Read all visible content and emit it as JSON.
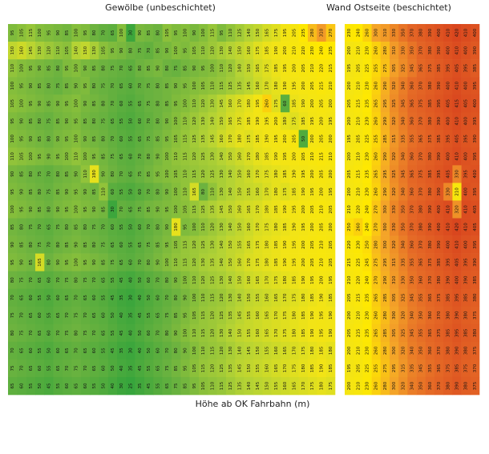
{
  "chart_data": {
    "type": "heatmap",
    "xlabel": "Höhe ab OK Fahrbahn (m)",
    "colorscale": [
      [
        0,
        "#1f9e3a"
      ],
      [
        80,
        "#6db33f"
      ],
      [
        140,
        "#b5d334"
      ],
      [
        190,
        "#f2e416"
      ],
      [
        240,
        "#ffe800"
      ],
      [
        300,
        "#f4a428"
      ],
      [
        360,
        "#e56a26"
      ],
      [
        420,
        "#d9461e"
      ]
    ],
    "panels": [
      {
        "title": "Gewölbe (unbeschichtet)",
        "values": [
          [
            95,
            105,
            115,
            100,
            95,
            90,
            85,
            100,
            95,
            80,
            70,
            65,
            100,
            30,
            90,
            85,
            80,
            105,
            95,
            100,
            90,
            100,
            115,
            95,
            110,
            125,
            140,
            150,
            165,
            175,
            195,
            205,
            235,
            280,
            310,
            270
          ],
          [
            150,
            160,
            145,
            130,
            120,
            110,
            105,
            140,
            150,
            130,
            105,
            95,
            90,
            80,
            75,
            70,
            85,
            90,
            100,
            95,
            105,
            110,
            120,
            130,
            140,
            150,
            160,
            175,
            185,
            190,
            200,
            210,
            220,
            230,
            240,
            235
          ],
          [
            110,
            100,
            95,
            90,
            85,
            80,
            95,
            100,
            90,
            85,
            80,
            75,
            70,
            65,
            80,
            85,
            90,
            80,
            75,
            85,
            90,
            95,
            100,
            110,
            120,
            140,
            150,
            165,
            175,
            185,
            195,
            200,
            205,
            210,
            220,
            215
          ],
          [
            100,
            95,
            90,
            85,
            80,
            75,
            85,
            90,
            95,
            80,
            75,
            70,
            65,
            60,
            70,
            75,
            80,
            85,
            90,
            95,
            100,
            105,
            110,
            115,
            125,
            135,
            145,
            160,
            170,
            180,
            190,
            195,
            200,
            205,
            215,
            210
          ],
          [
            105,
            100,
            95,
            90,
            85,
            90,
            95,
            100,
            90,
            85,
            80,
            70,
            60,
            55,
            65,
            75,
            80,
            85,
            95,
            100,
            110,
            120,
            130,
            145,
            160,
            170,
            180,
            195,
            260,
            175,
            60,
            185,
            190,
            200,
            205,
            200
          ],
          [
            95,
            90,
            85,
            80,
            75,
            85,
            90,
            95,
            85,
            80,
            75,
            65,
            55,
            50,
            60,
            70,
            80,
            90,
            100,
            110,
            120,
            130,
            140,
            150,
            165,
            175,
            185,
            190,
            195,
            200,
            180,
            175,
            185,
            195,
            200,
            195
          ],
          [
            100,
            95,
            90,
            85,
            80,
            90,
            95,
            100,
            90,
            85,
            80,
            70,
            60,
            55,
            65,
            75,
            85,
            95,
            105,
            115,
            125,
            135,
            145,
            160,
            170,
            180,
            175,
            185,
            190,
            195,
            200,
            205,
            50,
            200,
            205,
            200
          ],
          [
            110,
            105,
            100,
            95,
            90,
            95,
            100,
            110,
            100,
            95,
            85,
            75,
            65,
            60,
            70,
            80,
            90,
            100,
            110,
            115,
            120,
            125,
            130,
            140,
            150,
            160,
            170,
            180,
            185,
            190,
            195,
            200,
            205,
            210,
            215,
            210
          ],
          [
            90,
            85,
            80,
            75,
            70,
            80,
            85,
            90,
            110,
            180,
            90,
            80,
            70,
            65,
            75,
            85,
            95,
            100,
            105,
            110,
            115,
            120,
            125,
            130,
            140,
            150,
            160,
            170,
            175,
            180,
            185,
            190,
            195,
            200,
            205,
            200
          ],
          [
            95,
            90,
            85,
            80,
            75,
            85,
            90,
            95,
            90,
            85,
            110,
            60,
            55,
            50,
            60,
            70,
            80,
            90,
            100,
            110,
            165,
            80,
            110,
            130,
            140,
            150,
            155,
            160,
            170,
            180,
            175,
            185,
            190,
            195,
            200,
            195
          ],
          [
            100,
            95,
            90,
            85,
            80,
            90,
            95,
            100,
            95,
            90,
            85,
            30,
            70,
            65,
            75,
            85,
            90,
            95,
            100,
            105,
            115,
            125,
            135,
            145,
            150,
            160,
            165,
            170,
            180,
            185,
            190,
            195,
            200,
            205,
            210,
            205
          ],
          [
            85,
            80,
            75,
            70,
            65,
            75,
            80,
            85,
            80,
            75,
            70,
            60,
            55,
            50,
            60,
            70,
            80,
            90,
            180,
            95,
            100,
            110,
            120,
            130,
            140,
            150,
            160,
            170,
            175,
            180,
            185,
            190,
            195,
            200,
            205,
            200
          ],
          [
            90,
            85,
            80,
            75,
            70,
            80,
            85,
            90,
            85,
            80,
            75,
            65,
            60,
            55,
            65,
            75,
            85,
            95,
            105,
            115,
            120,
            125,
            130,
            140,
            150,
            155,
            165,
            175,
            180,
            185,
            190,
            195,
            200,
            205,
            210,
            205
          ],
          [
            95,
            90,
            85,
            165,
            80,
            90,
            95,
            100,
            95,
            90,
            85,
            75,
            65,
            60,
            70,
            80,
            90,
            100,
            110,
            115,
            120,
            130,
            135,
            140,
            150,
            160,
            170,
            175,
            180,
            185,
            190,
            195,
            200,
            205,
            210,
            205
          ],
          [
            80,
            75,
            70,
            65,
            60,
            70,
            75,
            80,
            75,
            70,
            65,
            55,
            45,
            40,
            50,
            60,
            70,
            80,
            90,
            100,
            110,
            120,
            125,
            130,
            140,
            150,
            160,
            165,
            170,
            175,
            180,
            185,
            190,
            195,
            200,
            195
          ],
          [
            70,
            65,
            60,
            55,
            50,
            60,
            65,
            70,
            65,
            60,
            55,
            45,
            35,
            30,
            40,
            50,
            60,
            70,
            80,
            90,
            100,
            110,
            115,
            120,
            130,
            140,
            150,
            155,
            160,
            165,
            170,
            175,
            180,
            185,
            190,
            185
          ],
          [
            75,
            70,
            65,
            60,
            55,
            65,
            70,
            75,
            70,
            65,
            60,
            50,
            40,
            35,
            45,
            55,
            65,
            75,
            85,
            95,
            105,
            115,
            120,
            125,
            135,
            145,
            155,
            160,
            165,
            170,
            175,
            180,
            185,
            190,
            195,
            190
          ],
          [
            80,
            75,
            70,
            65,
            60,
            70,
            75,
            80,
            75,
            70,
            65,
            55,
            45,
            40,
            50,
            60,
            70,
            80,
            90,
            100,
            110,
            115,
            120,
            130,
            140,
            150,
            155,
            160,
            165,
            170,
            175,
            180,
            185,
            190,
            195,
            190
          ],
          [
            70,
            65,
            60,
            55,
            50,
            60,
            65,
            70,
            65,
            60,
            55,
            45,
            35,
            30,
            40,
            50,
            60,
            70,
            80,
            90,
            100,
            110,
            115,
            120,
            130,
            140,
            145,
            150,
            155,
            160,
            165,
            170,
            175,
            180,
            185,
            180
          ],
          [
            75,
            70,
            65,
            60,
            55,
            65,
            70,
            75,
            70,
            65,
            60,
            50,
            40,
            35,
            45,
            55,
            65,
            75,
            85,
            95,
            105,
            115,
            120,
            125,
            135,
            145,
            150,
            155,
            160,
            165,
            170,
            175,
            180,
            185,
            190,
            185
          ],
          [
            65,
            60,
            55,
            50,
            45,
            55,
            60,
            65,
            60,
            55,
            50,
            40,
            30,
            25,
            35,
            45,
            55,
            65,
            75,
            85,
            95,
            105,
            110,
            115,
            125,
            135,
            140,
            145,
            150,
            155,
            160,
            165,
            170,
            175,
            180,
            175
          ]
        ]
      },
      {
        "title": "Wand Ostseite (beschichtet)",
        "values": [
          [
            230,
            240,
            260,
            300,
            310,
            330,
            350,
            370,
            380,
            390,
            400,
            410,
            420,
            410,
            400
          ],
          [
            200,
            210,
            230,
            260,
            280,
            310,
            330,
            350,
            370,
            380,
            390,
            400,
            410,
            400,
            390
          ],
          [
            195,
            205,
            225,
            255,
            275,
            305,
            325,
            345,
            365,
            375,
            385,
            395,
            405,
            395,
            385
          ],
          [
            200,
            210,
            230,
            260,
            290,
            320,
            340,
            360,
            370,
            380,
            390,
            400,
            410,
            400,
            395
          ],
          [
            205,
            215,
            235,
            265,
            295,
            325,
            345,
            365,
            375,
            385,
            395,
            405,
            415,
            405,
            400
          ],
          [
            200,
            210,
            230,
            260,
            290,
            320,
            340,
            360,
            370,
            380,
            390,
            400,
            410,
            400,
            395
          ],
          [
            195,
            205,
            225,
            255,
            285,
            315,
            335,
            355,
            365,
            375,
            385,
            395,
            405,
            395,
            390
          ],
          [
            200,
            210,
            230,
            260,
            290,
            320,
            340,
            360,
            370,
            380,
            390,
            400,
            410,
            400,
            395
          ],
          [
            205,
            215,
            235,
            265,
            295,
            325,
            345,
            365,
            375,
            385,
            395,
            405,
            330,
            395,
            400
          ],
          [
            200,
            210,
            230,
            260,
            290,
            320,
            340,
            360,
            370,
            380,
            390,
            330,
            210,
            400,
            395
          ],
          [
            210,
            220,
            240,
            270,
            300,
            330,
            350,
            370,
            380,
            390,
            400,
            410,
            320,
            410,
            405
          ],
          [
            250,
            260,
            240,
            270,
            300,
            330,
            350,
            370,
            380,
            390,
            400,
            410,
            420,
            410,
            405
          ],
          [
            220,
            230,
            250,
            280,
            300,
            320,
            340,
            360,
            370,
            380,
            390,
            400,
            410,
            400,
            395
          ],
          [
            215,
            225,
            245,
            275,
            295,
            315,
            335,
            355,
            365,
            375,
            385,
            395,
            405,
            395,
            390
          ],
          [
            210,
            220,
            240,
            270,
            290,
            310,
            330,
            350,
            360,
            370,
            380,
            390,
            400,
            390,
            385
          ],
          [
            205,
            215,
            235,
            265,
            285,
            305,
            325,
            345,
            355,
            365,
            375,
            385,
            395,
            385,
            380
          ],
          [
            200,
            210,
            230,
            260,
            280,
            300,
            320,
            340,
            350,
            360,
            370,
            380,
            390,
            380,
            375
          ],
          [
            205,
            215,
            235,
            265,
            285,
            305,
            325,
            345,
            355,
            365,
            375,
            385,
            395,
            385,
            380
          ],
          [
            200,
            210,
            230,
            260,
            280,
            300,
            320,
            340,
            350,
            360,
            370,
            380,
            390,
            380,
            375
          ],
          [
            195,
            205,
            225,
            255,
            275,
            295,
            315,
            335,
            345,
            355,
            365,
            375,
            385,
            375,
            370
          ],
          [
            200,
            210,
            230,
            260,
            280,
            300,
            320,
            340,
            350,
            360,
            370,
            380,
            390,
            380,
            375
          ]
        ]
      }
    ]
  }
}
